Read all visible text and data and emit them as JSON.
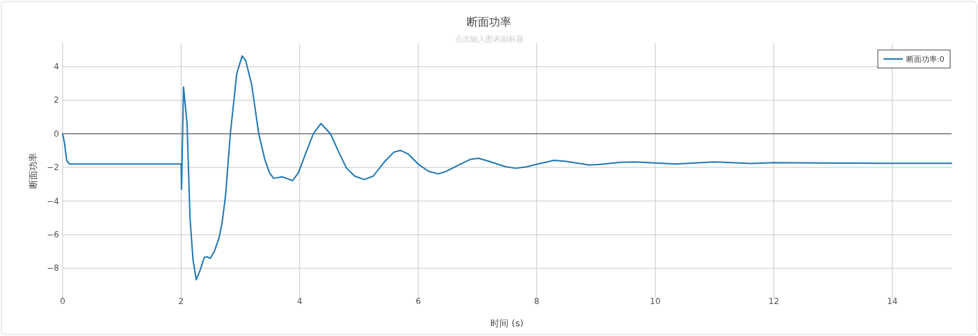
{
  "chart_data": {
    "type": "line",
    "title": "断面功率",
    "subtitle": "点击输入图表副标题",
    "xlabel": "时间 (s)",
    "ylabel": "断面功率",
    "xlim": [
      0,
      15
    ],
    "ylim": [
      -9.8,
      5.4
    ],
    "xticks": [
      0,
      2,
      4,
      6,
      8,
      10,
      12,
      14
    ],
    "yticks": [
      -8,
      -6,
      -4,
      -2,
      0,
      2,
      4
    ],
    "grid": true,
    "legend": "top right",
    "line_style": "solid",
    "ref_lines": [
      {
        "axis": "y",
        "value": 0,
        "color": "#444444"
      }
    ],
    "series": [
      {
        "name": "断面功率:0",
        "color": "#1f77b4",
        "x": [
          0,
          0.03,
          0.07,
          0.12,
          0.3,
          1.0,
          1.99,
          2.0,
          2.007,
          2.04,
          2.1,
          2.15,
          2.2,
          2.255,
          2.33,
          2.39,
          2.44,
          2.49,
          2.56,
          2.64,
          2.69,
          2.75,
          2.83,
          2.9,
          2.94,
          3.03,
          3.09,
          3.19,
          3.31,
          3.41,
          3.49,
          3.56,
          3.7,
          3.78,
          3.88,
          3.98,
          4.11,
          4.23,
          4.36,
          4.52,
          4.66,
          4.79,
          4.93,
          5.09,
          5.24,
          5.44,
          5.59,
          5.7,
          5.83,
          6.0,
          6.18,
          6.34,
          6.47,
          6.69,
          6.88,
          7.02,
          7.19,
          7.47,
          7.64,
          7.82,
          8.02,
          8.29,
          8.48,
          8.89,
          9.07,
          9.42,
          9.66,
          10.0,
          10.34,
          11.0,
          11.62,
          12.0,
          12.71,
          14.0,
          15.0
        ],
        "values": [
          0,
          -0.5,
          -1.6,
          -1.8,
          -1.8,
          -1.8,
          -1.8,
          -1.8,
          -3.3,
          2.79,
          0.61,
          -5.0,
          -7.48,
          -8.68,
          -8.03,
          -7.35,
          -7.32,
          -7.41,
          -7.0,
          -6.19,
          -5.31,
          -3.67,
          0,
          2.31,
          3.6,
          4.63,
          4.35,
          2.93,
          0,
          -1.5,
          -2.31,
          -2.65,
          -2.56,
          -2.65,
          -2.79,
          -2.31,
          -1.09,
          0,
          0.61,
          0,
          -1.09,
          -2.04,
          -2.52,
          -2.72,
          -2.52,
          -1.63,
          -1.09,
          -0.99,
          -1.2,
          -1.8,
          -2.24,
          -2.38,
          -2.24,
          -1.84,
          -1.52,
          -1.46,
          -1.63,
          -1.95,
          -2.05,
          -1.97,
          -1.8,
          -1.58,
          -1.63,
          -1.86,
          -1.82,
          -1.69,
          -1.67,
          -1.74,
          -1.8,
          -1.67,
          -1.77,
          -1.71,
          -1.74,
          -1.76,
          -1.76
        ]
      }
    ]
  }
}
